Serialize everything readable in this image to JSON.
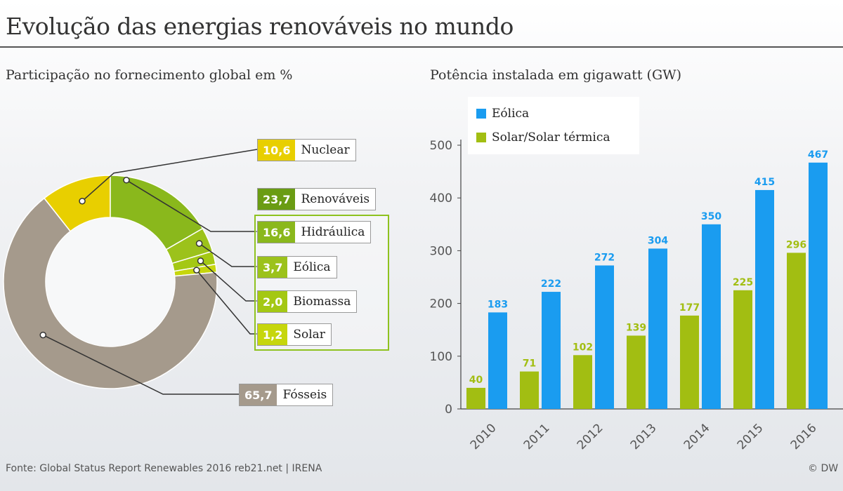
{
  "title": "Evolução das energias renováveis no mundo",
  "left_subtitle": "Participação no fornecimento global em %",
  "right_subtitle": "Potência instalada em gigawatt (GW)",
  "source": "Fonte: Global Status Report Renewables 2016 reb21.net | IRENA",
  "credit": "© DW",
  "colors": {
    "nuclear": "#e8cf00",
    "renewables": "#6a9c13",
    "hydro": "#8ab81c",
    "wind_share": "#9cc21b",
    "biomass": "#a4c814",
    "solar_share": "#c6d60c",
    "fossil": "#a59a8c",
    "eolica_bar": "#1a9cf0",
    "solar_bar": "#a2be12"
  },
  "donut": {
    "labels": {
      "nuclear": {
        "value": "10,6",
        "name": "Nuclear"
      },
      "renewables": {
        "value": "23,7",
        "name": "Renováveis"
      },
      "hydro": {
        "value": "16,6",
        "name": "Hidráulica"
      },
      "wind": {
        "value": "3,7",
        "name": "Eólica"
      },
      "biomass": {
        "value": "2,0",
        "name": "Biomassa"
      },
      "solar": {
        "value": "1,2",
        "name": "Solar"
      },
      "fossil": {
        "value": "65,7",
        "name": "Fósseis"
      }
    }
  },
  "chart_data": [
    {
      "type": "pie",
      "title": "Participação no fornecimento global em %",
      "slices": [
        {
          "name": "Nuclear",
          "value": 10.6
        },
        {
          "name": "Hidráulica",
          "value": 16.6
        },
        {
          "name": "Eólica",
          "value": 3.7
        },
        {
          "name": "Biomassa",
          "value": 2.0
        },
        {
          "name": "Solar",
          "value": 1.2
        },
        {
          "name": "Fósseis",
          "value": 65.7
        }
      ],
      "group": {
        "name": "Renováveis",
        "value": 23.7
      },
      "style": "donut"
    },
    {
      "type": "bar",
      "title": "Potência instalada em gigawatt (GW)",
      "categories": [
        "2010",
        "2011",
        "2012",
        "2013",
        "2014",
        "2015",
        "2016"
      ],
      "series": [
        {
          "name": "Solar/Solar térmica",
          "values": [
            40,
            71,
            102,
            139,
            177,
            225,
            296
          ]
        },
        {
          "name": "Eólica",
          "values": [
            183,
            222,
            272,
            304,
            350,
            415,
            467
          ]
        }
      ],
      "ylim": [
        0,
        500
      ],
      "yticks": [
        0,
        100,
        200,
        300,
        400,
        500
      ],
      "legend": "top-left",
      "grid": false
    }
  ],
  "legend": {
    "eolica": "Eólica",
    "solar": "Solar/Solar térmica"
  }
}
